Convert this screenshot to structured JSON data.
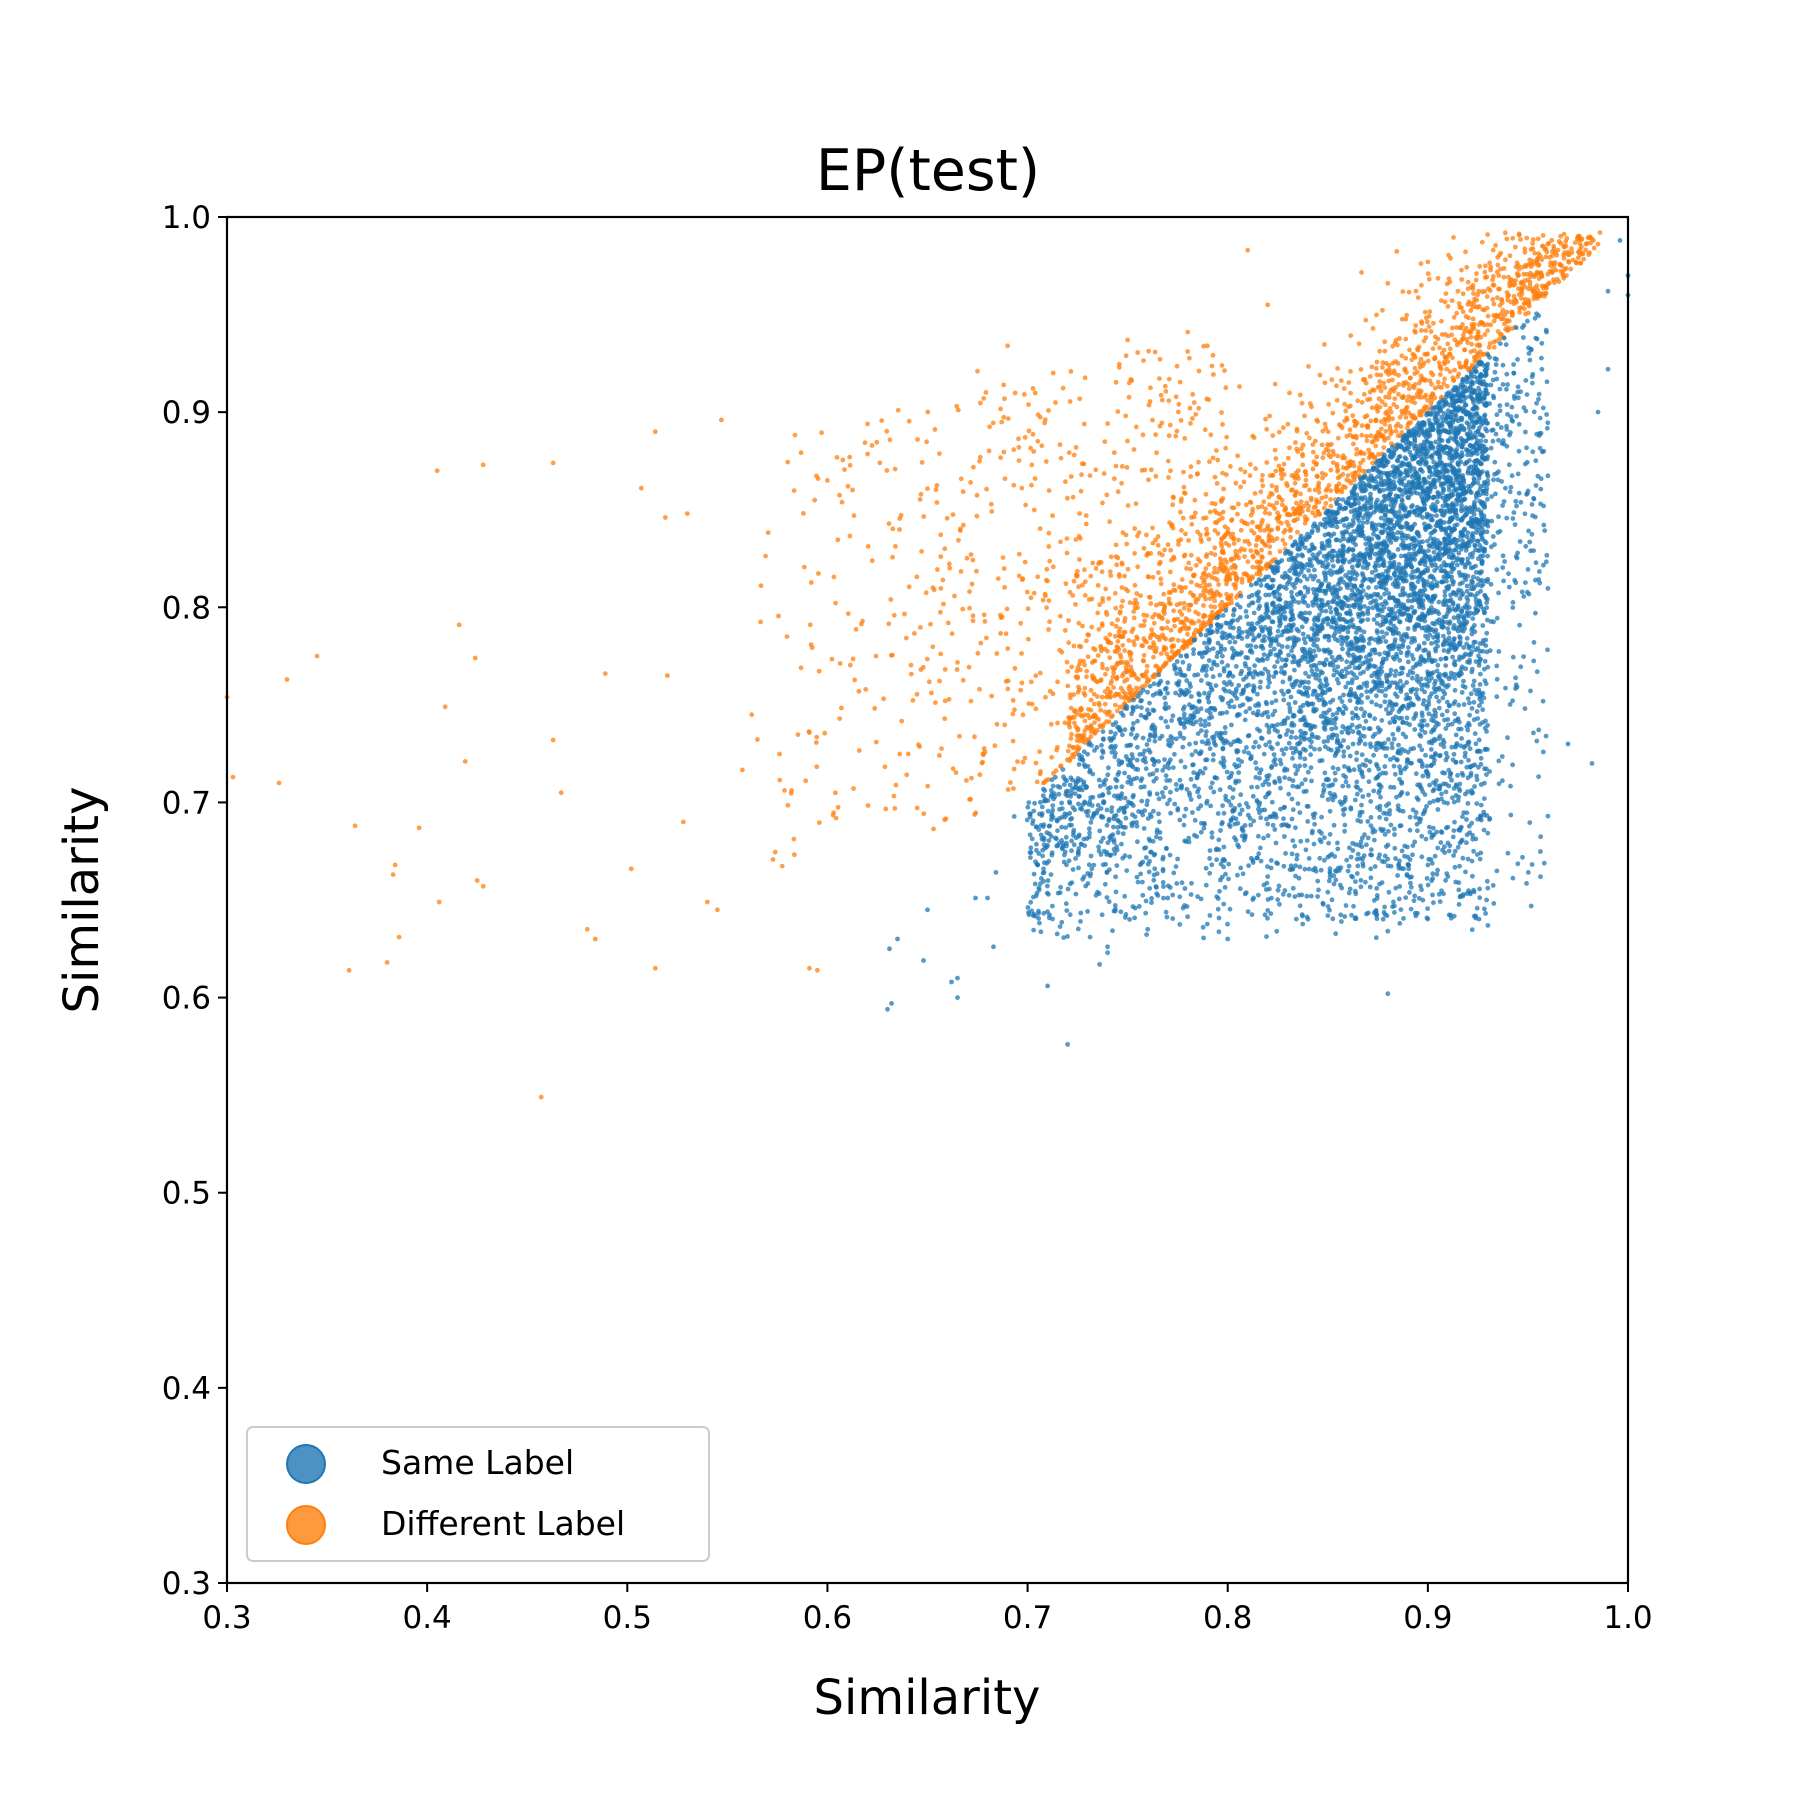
{
  "chart_data": {
    "type": "scatter",
    "title": "EP(test)",
    "xlabel": "Similarity",
    "ylabel": "Similarity",
    "xlim": [
      0.3,
      1.0
    ],
    "ylim": [
      0.3,
      1.0
    ],
    "xticks": [
      "0.3",
      "0.4",
      "0.5",
      "0.6",
      "0.7",
      "0.8",
      "0.9",
      "1.0"
    ],
    "yticks": [
      "0.3",
      "0.4",
      "0.5",
      "0.6",
      "0.7",
      "0.8",
      "0.9",
      "1.0"
    ],
    "grid": false,
    "legend_position": "lower-left",
    "series": [
      {
        "name": "Same Label",
        "color": "#1f77b4",
        "rule": "points lie on or below the diagonal y = x",
        "x_range": [
          0.63,
          1.0
        ],
        "y_range": [
          0.576,
          0.988
        ],
        "points": [
          [
            0.63,
            0.594
          ],
          [
            0.631,
            0.625
          ],
          [
            0.632,
            0.597
          ],
          [
            0.635,
            0.63
          ],
          [
            0.648,
            0.619
          ],
          [
            0.65,
            0.645
          ],
          [
            0.662,
            0.608
          ],
          [
            0.665,
            0.61
          ],
          [
            0.665,
            0.6
          ],
          [
            0.674,
            0.651
          ],
          [
            0.68,
            0.651
          ],
          [
            0.683,
            0.626
          ],
          [
            0.71,
            0.606
          ],
          [
            0.71,
            0.678
          ],
          [
            0.72,
            0.576
          ],
          [
            0.736,
            0.617
          ],
          [
            0.74,
            0.623
          ],
          [
            0.74,
            0.626
          ],
          [
            0.76,
            0.635
          ],
          [
            0.77,
            0.651
          ],
          [
            0.8,
            0.63
          ],
          [
            0.82,
            0.662
          ],
          [
            0.85,
            0.642
          ],
          [
            0.85,
            0.654
          ],
          [
            0.88,
            0.602
          ],
          [
            0.88,
            0.634
          ],
          [
            0.886,
            0.638
          ],
          [
            0.9,
            0.668
          ],
          [
            0.91,
            0.662
          ],
          [
            0.93,
            0.637
          ],
          [
            0.94,
            0.674
          ],
          [
            0.96,
            0.693
          ],
          [
            0.97,
            0.73
          ],
          [
            0.982,
            0.72
          ],
          [
            0.99,
            0.922
          ],
          [
            0.99,
            0.962
          ],
          [
            1.0,
            0.96
          ],
          [
            1.0,
            0.97
          ],
          [
            0.996,
            0.988
          ],
          [
            0.985,
            0.9
          ]
        ]
      },
      {
        "name": "Different Label",
        "color": "#ff7f0e",
        "rule": "points lie on or above the diagonal y = x",
        "x_range": [
          0.3,
          0.99
        ],
        "y_range": [
          0.549,
          0.99
        ],
        "points": [
          [
            0.3,
            0.754
          ],
          [
            0.303,
            0.713
          ],
          [
            0.326,
            0.71
          ],
          [
            0.33,
            0.763
          ],
          [
            0.345,
            0.775
          ],
          [
            0.361,
            0.614
          ],
          [
            0.364,
            0.688
          ],
          [
            0.38,
            0.618
          ],
          [
            0.383,
            0.663
          ],
          [
            0.384,
            0.668
          ],
          [
            0.386,
            0.631
          ],
          [
            0.396,
            0.687
          ],
          [
            0.405,
            0.87
          ],
          [
            0.406,
            0.649
          ],
          [
            0.409,
            0.749
          ],
          [
            0.416,
            0.791
          ],
          [
            0.419,
            0.721
          ],
          [
            0.424,
            0.774
          ],
          [
            0.425,
            0.66
          ],
          [
            0.428,
            0.873
          ],
          [
            0.428,
            0.657
          ],
          [
            0.457,
            0.549
          ],
          [
            0.463,
            0.874
          ],
          [
            0.463,
            0.732
          ],
          [
            0.467,
            0.705
          ],
          [
            0.48,
            0.635
          ],
          [
            0.484,
            0.63
          ],
          [
            0.489,
            0.766
          ],
          [
            0.502,
            0.666
          ],
          [
            0.507,
            0.861
          ],
          [
            0.514,
            0.89
          ],
          [
            0.514,
            0.615
          ],
          [
            0.519,
            0.846
          ],
          [
            0.52,
            0.765
          ],
          [
            0.528,
            0.69
          ],
          [
            0.53,
            0.848
          ],
          [
            0.54,
            0.649
          ],
          [
            0.545,
            0.645
          ],
          [
            0.547,
            0.896
          ],
          [
            0.591,
            0.615
          ],
          [
            0.595,
            0.614
          ],
          [
            0.6,
            0.865
          ],
          [
            0.62,
            0.894
          ],
          [
            0.645,
            0.886
          ],
          [
            0.69,
            0.934
          ],
          [
            0.675,
            0.921
          ],
          [
            0.75,
            0.937
          ],
          [
            0.78,
            0.941
          ],
          [
            0.81,
            0.983
          ],
          [
            0.82,
            0.955
          ],
          [
            0.88,
            0.966
          ],
          [
            0.9,
            0.977
          ],
          [
            0.965,
            0.983
          ],
          [
            0.975,
            0.99
          ],
          [
            0.986,
            0.992
          ]
        ]
      }
    ]
  },
  "legend": {
    "items": [
      {
        "label": "Same Label",
        "color": "#1f77b4"
      },
      {
        "label": "Different Label",
        "color": "#ff7f0e"
      }
    ]
  }
}
